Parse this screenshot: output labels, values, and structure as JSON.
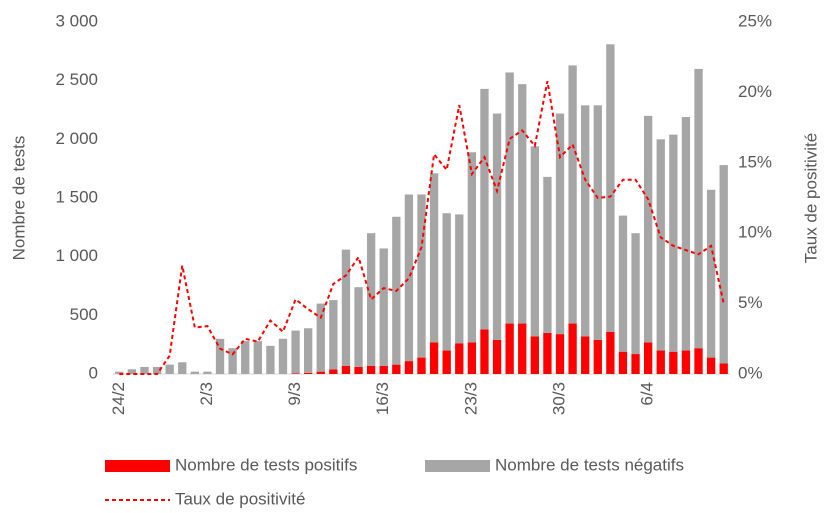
{
  "chart_data": {
    "type": "bar",
    "categories": [
      "24/2",
      null,
      null,
      null,
      null,
      null,
      null,
      "2/3",
      null,
      null,
      null,
      null,
      null,
      null,
      "9/3",
      null,
      null,
      null,
      null,
      null,
      null,
      "16/3",
      null,
      null,
      null,
      null,
      null,
      null,
      "23/3",
      null,
      null,
      null,
      null,
      null,
      null,
      "30/3",
      null,
      null,
      null,
      null,
      null,
      null,
      "6/4",
      null,
      null,
      null,
      null,
      null,
      null
    ],
    "series": [
      {
        "name": "Nombre de tests positifs",
        "color": "#ff0000",
        "values": [
          0,
          0,
          0,
          0,
          0,
          0,
          0,
          0,
          0,
          0,
          0,
          0,
          0,
          0,
          5,
          10,
          20,
          40,
          70,
          60,
          70,
          70,
          80,
          110,
          140,
          270,
          200,
          260,
          270,
          380,
          290,
          430,
          430,
          320,
          350,
          340,
          430,
          320,
          290,
          360,
          190,
          170,
          270,
          200,
          190,
          200,
          220,
          140,
          90
        ]
      },
      {
        "name": "Nombre de tests négatifs",
        "color": "#a6a6a6",
        "values": [
          20,
          40,
          60,
          60,
          80,
          100,
          20,
          20,
          300,
          220,
          280,
          280,
          240,
          300,
          365,
          380,
          580,
          590,
          990,
          680,
          1130,
          1000,
          1260,
          1420,
          1390,
          1440,
          1170,
          1100,
          1620,
          2050,
          1930,
          2140,
          2040,
          1620,
          1330,
          1880,
          2200,
          1970,
          2000,
          2450,
          1160,
          1030,
          1930,
          1800,
          1850,
          1990,
          2380,
          1430,
          1690
        ]
      },
      {
        "name": "Taux de positivité",
        "color": "#ff0000",
        "axis": "y2",
        "values": [
          0,
          0,
          0,
          0,
          1.3,
          7.7,
          3.3,
          3.4,
          1.8,
          1.4,
          2.5,
          2.3,
          3.8,
          3.0,
          5.3,
          4.6,
          4.0,
          6.4,
          7.0,
          8.3,
          5.3,
          6.1,
          5.9,
          6.8,
          9.0,
          15.6,
          14.5,
          19.1,
          14.2,
          15.4,
          13.0,
          16.7,
          17.3,
          16.2,
          20.8,
          15.4,
          16.3,
          13.8,
          12.5,
          12.6,
          13.8,
          13.8,
          12.4,
          9.7,
          9.1,
          8.8,
          8.5,
          9.1,
          5.0
        ]
      }
    ],
    "ylabel": "Nombre de tests",
    "y2label": "Taux de positivité",
    "ylim": [
      0,
      3000
    ],
    "yticks": [
      0,
      500,
      {
        "value": 1000,
        "label": "1 000"
      },
      {
        "value": 1500,
        "label": "1 500"
      },
      {
        "value": 2000,
        "label": "2 000"
      },
      {
        "value": 2500,
        "label": "2 500"
      },
      {
        "value": 3000,
        "label": "3 000"
      }
    ],
    "y2lim": [
      0,
      25
    ],
    "y2ticks": [
      {
        "value": 0,
        "label": "0%"
      },
      {
        "value": 5,
        "label": "5%"
      },
      {
        "value": 10,
        "label": "10%"
      },
      {
        "value": 15,
        "label": "15%"
      },
      {
        "value": 20,
        "label": "20%"
      },
      {
        "value": 25,
        "label": "25%"
      }
    ]
  }
}
